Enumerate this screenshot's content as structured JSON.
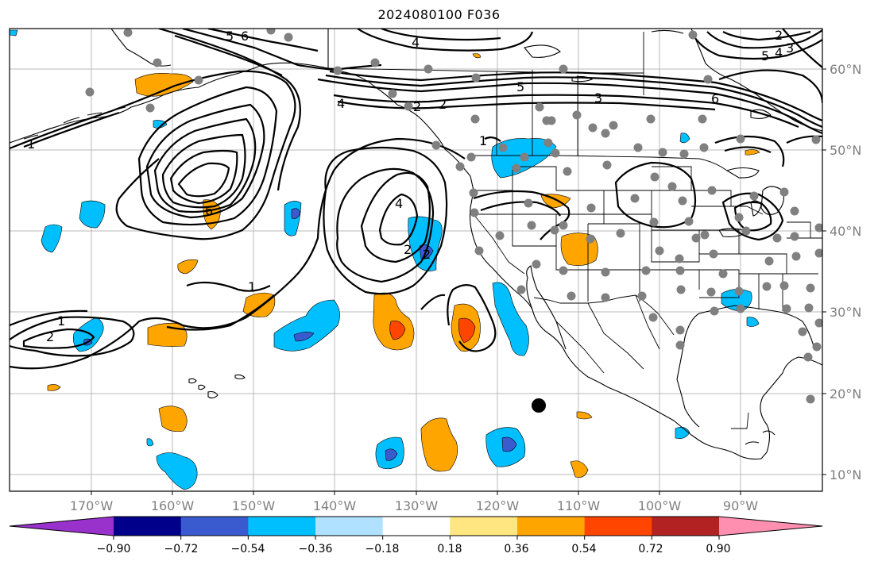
{
  "title": "2024080100 F036",
  "longitude_labels": [
    "170°W",
    "160°W",
    "150°W",
    "140°W",
    "130°W",
    "120°W",
    "110°W",
    "100°W",
    "90°W"
  ],
  "latitude_labels": [
    "60°N",
    "50°N",
    "40°N",
    "30°N",
    "20°N",
    "10°N"
  ],
  "colorbar": {
    "tick_labels": [
      "−0.90",
      "−0.72",
      "−0.54",
      "−0.36",
      "−0.18",
      "0.18",
      "0.36",
      "0.54",
      "0.72",
      "0.90"
    ],
    "colors": [
      "#9932cc",
      "#00008b",
      "#3a5bd0",
      "#00bfff",
      "#b0e2ff",
      "#ffffff",
      "#ffe680",
      "#ffa500",
      "#ff4500",
      "#b22222",
      "#ff8fb0"
    ]
  },
  "contour_labels": [
    "5",
    "6",
    "4",
    "5",
    "3",
    "6",
    "2",
    "2",
    "4",
    "1",
    "6",
    "2",
    "1",
    "2",
    "1",
    "4",
    "2",
    "2",
    "1",
    "3",
    "4",
    "5"
  ],
  "colors": {
    "orange": "#ffa500",
    "red": "#ff4500",
    "light_blue": "#00bfff",
    "blue": "#3a5bd0",
    "station": "#808080"
  }
}
